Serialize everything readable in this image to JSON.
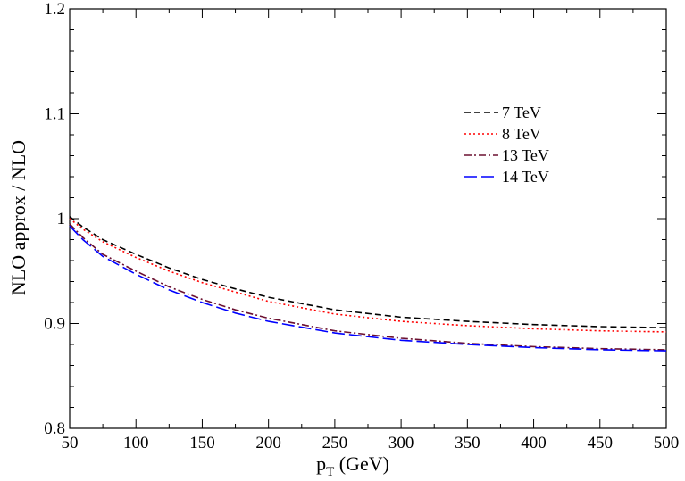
{
  "chart_data": {
    "type": "line",
    "title": "",
    "xlabel": "p",
    "xlabel_sub": "T",
    "xlabel_unit": " (GeV)",
    "ylabel": "NLO approx / NLO",
    "xlim": [
      50,
      500
    ],
    "ylim": [
      0.8,
      1.2
    ],
    "x_ticks": [
      50,
      100,
      150,
      200,
      250,
      300,
      350,
      400,
      450,
      500
    ],
    "y_ticks": [
      0.8,
      0.9,
      1,
      1.1,
      1.2
    ],
    "x_tick_labels": [
      "50",
      "100",
      "150",
      "200",
      "250",
      "300",
      "350",
      "400",
      "450",
      "500"
    ],
    "y_tick_labels": [
      "0.8",
      "0.9",
      "1",
      "1.1",
      "1.2"
    ],
    "grid": false,
    "legend_position": "upper-right",
    "x": [
      50,
      60,
      75,
      100,
      125,
      150,
      175,
      200,
      250,
      300,
      350,
      400,
      450,
      500
    ],
    "series": [
      {
        "name": "7 TeV",
        "color": "#000000",
        "dash": "dashed",
        "values": [
          1.002,
          0.992,
          0.98,
          0.966,
          0.953,
          0.942,
          0.933,
          0.925,
          0.913,
          0.906,
          0.902,
          0.899,
          0.897,
          0.896
        ]
      },
      {
        "name": "8 TeV",
        "color": "#ff0000",
        "dash": "dotted",
        "values": [
          1.0,
          0.99,
          0.978,
          0.963,
          0.95,
          0.939,
          0.93,
          0.921,
          0.909,
          0.902,
          0.898,
          0.895,
          0.893,
          0.892
        ]
      },
      {
        "name": "13 TeV",
        "color": "#6b1030",
        "dash": "dashdot",
        "values": [
          0.995,
          0.982,
          0.966,
          0.95,
          0.935,
          0.923,
          0.913,
          0.905,
          0.893,
          0.886,
          0.881,
          0.878,
          0.876,
          0.875
        ]
      },
      {
        "name": "14 TeV",
        "color": "#0000ff",
        "dash": "longdash",
        "values": [
          0.993,
          0.98,
          0.964,
          0.947,
          0.932,
          0.92,
          0.91,
          0.902,
          0.891,
          0.884,
          0.88,
          0.877,
          0.875,
          0.874
        ]
      }
    ]
  }
}
